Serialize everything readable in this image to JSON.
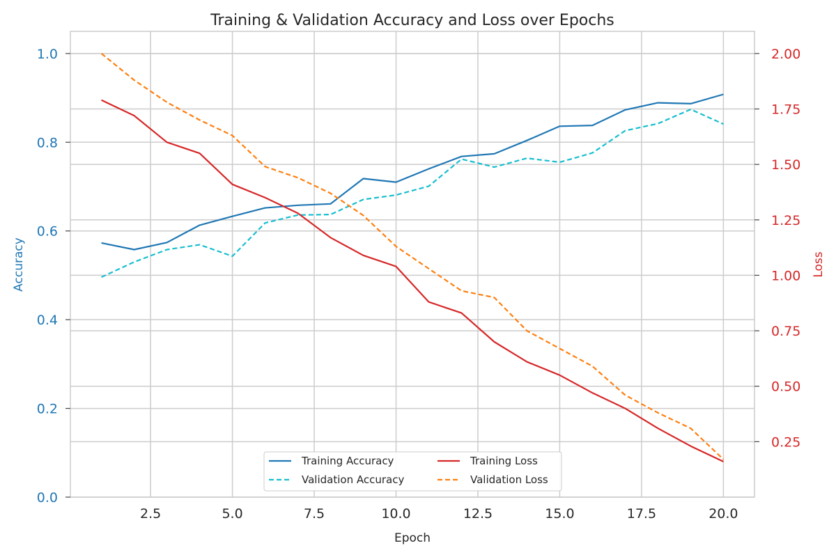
{
  "chart_data": {
    "type": "line",
    "title": "Training & Validation Accuracy and Loss over Epochs",
    "xlabel": "Epoch",
    "y_left_label": "Accuracy",
    "y_right_label": "Loss",
    "xlim": [
      0.05,
      20.95
    ],
    "ylim_left": [
      0.0,
      1.05
    ],
    "ylim_right": [
      0.0,
      2.1
    ],
    "x_ticks": [
      2.5,
      5.0,
      7.5,
      10.0,
      12.5,
      15.0,
      17.5,
      20.0
    ],
    "x_tick_labels": [
      "2.5",
      "5.0",
      "7.5",
      "10.0",
      "12.5",
      "15.0",
      "17.5",
      "20.0"
    ],
    "y_left_ticks": [
      0.0,
      0.2,
      0.4,
      0.6,
      0.8,
      1.0
    ],
    "y_left_tick_labels": [
      "0.0",
      "0.2",
      "0.4",
      "0.6",
      "0.8",
      "1.0"
    ],
    "y_right_ticks": [
      0.25,
      0.5,
      0.75,
      1.0,
      1.25,
      1.5,
      1.75,
      2.0
    ],
    "y_right_tick_labels": [
      "0.25",
      "0.50",
      "0.75",
      "1.00",
      "1.25",
      "1.50",
      "1.75",
      "2.00"
    ],
    "grid": true,
    "legend_position": "bottom-center",
    "colors": {
      "accuracy_axis": "#1f77b4",
      "loss_axis": "#d62728",
      "grid": "#cccccc",
      "text": "#262626"
    },
    "x": [
      1,
      2,
      3,
      4,
      5,
      6,
      7,
      8,
      9,
      10,
      11,
      12,
      13,
      14,
      15,
      16,
      17,
      18,
      19,
      20
    ],
    "series": [
      {
        "name": "Training Accuracy",
        "axis": "left",
        "color": "#1f77b4",
        "dash": "solid",
        "values": [
          0.573,
          0.558,
          0.574,
          0.613,
          0.633,
          0.652,
          0.658,
          0.661,
          0.718,
          0.71,
          0.74,
          0.768,
          0.774,
          0.804,
          0.836,
          0.838,
          0.873,
          0.889,
          0.887,
          0.908
        ]
      },
      {
        "name": "Validation Accuracy",
        "axis": "left",
        "color": "#17becf",
        "dash": "dashed",
        "values": [
          0.496,
          0.53,
          0.558,
          0.569,
          0.543,
          0.618,
          0.636,
          0.637,
          0.671,
          0.681,
          0.701,
          0.762,
          0.744,
          0.764,
          0.755,
          0.776,
          0.826,
          0.842,
          0.874,
          0.841
        ]
      },
      {
        "name": "Training Loss",
        "axis": "right",
        "color": "#d62728",
        "dash": "solid",
        "values": [
          1.79,
          1.72,
          1.6,
          1.55,
          1.41,
          1.35,
          1.28,
          1.17,
          1.09,
          1.04,
          0.88,
          0.83,
          0.7,
          0.61,
          0.55,
          0.47,
          0.4,
          0.31,
          0.23,
          0.16
        ]
      },
      {
        "name": "Validation Loss",
        "axis": "right",
        "color": "#ff7f0e",
        "dash": "dashed",
        "values": [
          2.0,
          1.88,
          1.78,
          1.7,
          1.63,
          1.49,
          1.44,
          1.37,
          1.27,
          1.13,
          1.03,
          0.93,
          0.9,
          0.75,
          0.67,
          0.59,
          0.46,
          0.38,
          0.31,
          0.17
        ]
      }
    ]
  }
}
